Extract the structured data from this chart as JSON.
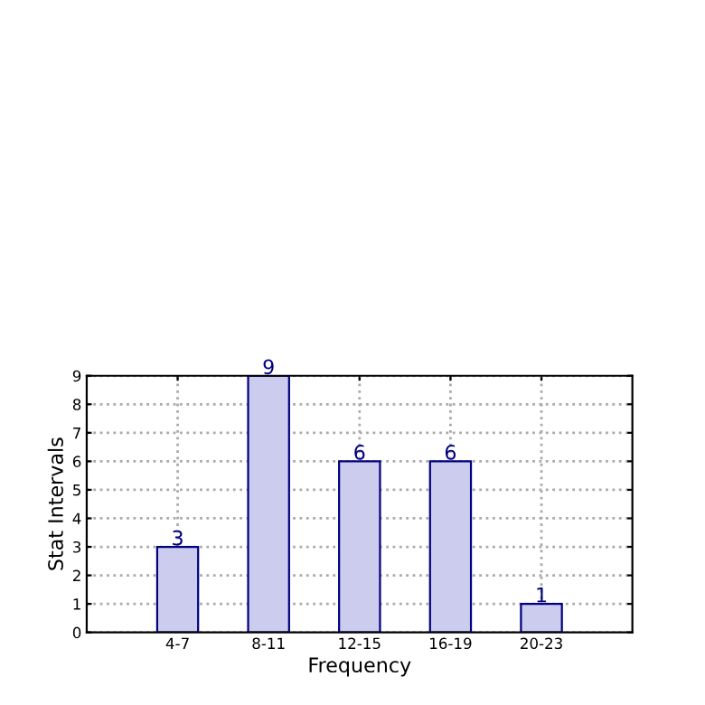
{
  "chart_data": {
    "type": "bar",
    "xlabel": "Frequency",
    "ylabel": "Stat Intervals",
    "categories": [
      "4-7",
      "8-11",
      "12-15",
      "16-19",
      "20-23"
    ],
    "values": [
      3,
      9,
      6,
      6,
      1
    ],
    "color": "#ccccee",
    "ylim": [
      0,
      9
    ],
    "yticks": [
      0,
      1,
      2,
      3,
      4,
      5,
      6,
      7,
      8,
      9
    ],
    "grid": true,
    "data_labels": true
  }
}
